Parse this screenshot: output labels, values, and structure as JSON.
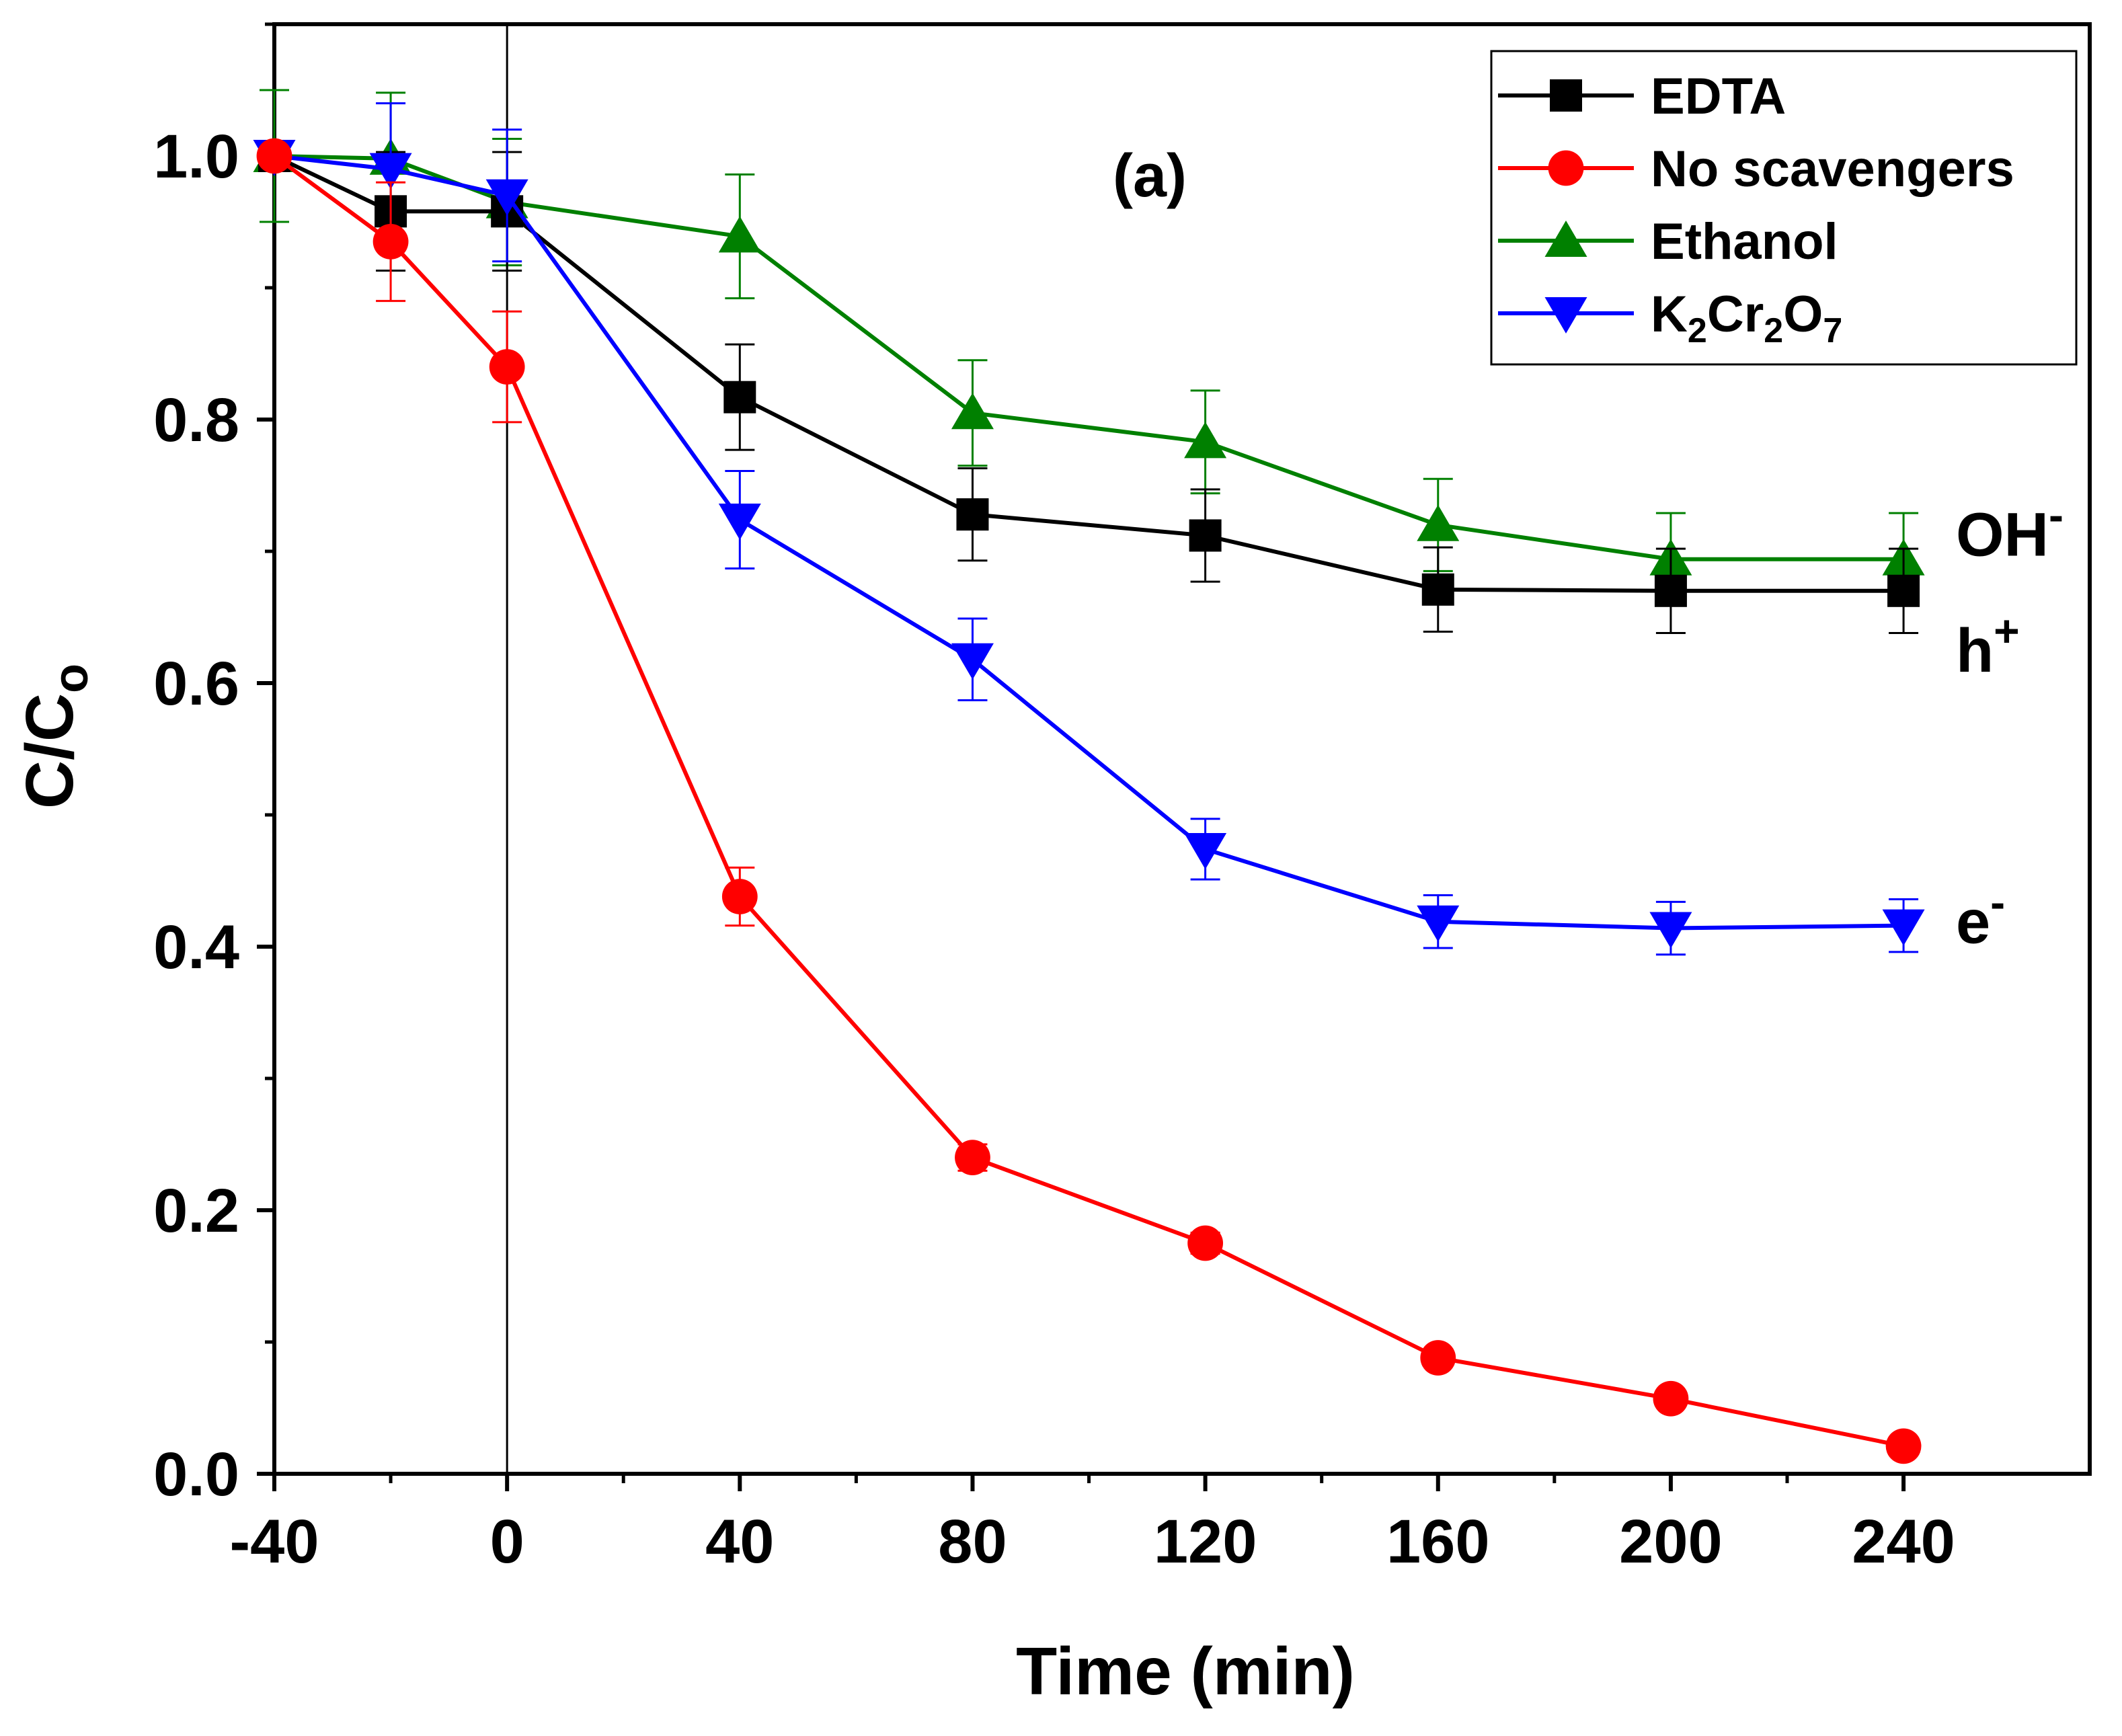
{
  "chart_data": {
    "type": "line",
    "title": "",
    "panel_label": "(a)",
    "xlabel": "Time (min)",
    "ylabel": {
      "main": "C/C",
      "sub": "o"
    },
    "xlim": [
      -40,
      272
    ],
    "ylim": [
      0.0,
      1.1
    ],
    "xticks": [
      -40,
      0,
      40,
      80,
      120,
      160,
      200,
      240
    ],
    "xtick_labels": [
      "-40",
      "0",
      "40",
      "80",
      "120",
      "160",
      "200",
      "240"
    ],
    "yticks": [
      0.0,
      0.2,
      0.4,
      0.6,
      0.8,
      1.0
    ],
    "ytick_labels": [
      "0.0",
      "0.2",
      "0.4",
      "0.6",
      "0.8",
      "1.0"
    ],
    "vline_x": 0,
    "grid": false,
    "legend_position": "top-right",
    "x": [
      -40,
      -20,
      0,
      40,
      80,
      120,
      160,
      200,
      240
    ],
    "series": [
      {
        "name": "EDTA",
        "legend": {
          "main": "EDTA"
        },
        "color": "#000000",
        "marker": "square",
        "values": [
          1.0,
          0.958,
          0.958,
          0.817,
          0.728,
          0.712,
          0.671,
          0.67,
          0.67
        ],
        "errors": [
          0.0,
          0.045,
          0.045,
          0.04,
          0.035,
          0.035,
          0.032,
          0.032,
          0.032
        ]
      },
      {
        "name": "No scavengers",
        "legend": {
          "main": "No scavengers"
        },
        "color": "#ff0000",
        "marker": "circle",
        "values": [
          1.0,
          0.935,
          0.84,
          0.438,
          0.24,
          0.175,
          0.088,
          0.057,
          0.021
        ],
        "errors": [
          0.0,
          0.045,
          0.042,
          0.022,
          0.01,
          0.008,
          0.006,
          0.005,
          0.004
        ]
      },
      {
        "name": "Ethanol",
        "legend": {
          "main": "Ethanol"
        },
        "color": "#008000",
        "marker": "triangle-up",
        "values": [
          1.0,
          0.998,
          0.965,
          0.939,
          0.805,
          0.783,
          0.72,
          0.694,
          0.694
        ],
        "errors": [
          0.05,
          0.05,
          0.048,
          0.047,
          0.04,
          0.039,
          0.035,
          0.035,
          0.035
        ]
      },
      {
        "name": "K2Cr2O7",
        "legend": {
          "main": "K",
          "sub1": "2",
          "mid": "Cr",
          "sub2": "2",
          "end": "O",
          "sub3": "7"
        },
        "color": "#0000ff",
        "marker": "triangle-down",
        "values": [
          1.0,
          0.99,
          0.97,
          0.724,
          0.618,
          0.474,
          0.419,
          0.414,
          0.416
        ],
        "errors": [
          0.0,
          0.05,
          0.05,
          0.037,
          0.031,
          0.023,
          0.02,
          0.02,
          0.02
        ]
      }
    ],
    "annotations": [
      {
        "label": "OH",
        "sup": "-",
        "x": 249,
        "y": 0.712
      },
      {
        "label": "h",
        "sup": "+",
        "x": 249,
        "y": 0.624
      },
      {
        "label": "e",
        "sup": "-",
        "x": 249,
        "y": 0.418
      }
    ]
  }
}
